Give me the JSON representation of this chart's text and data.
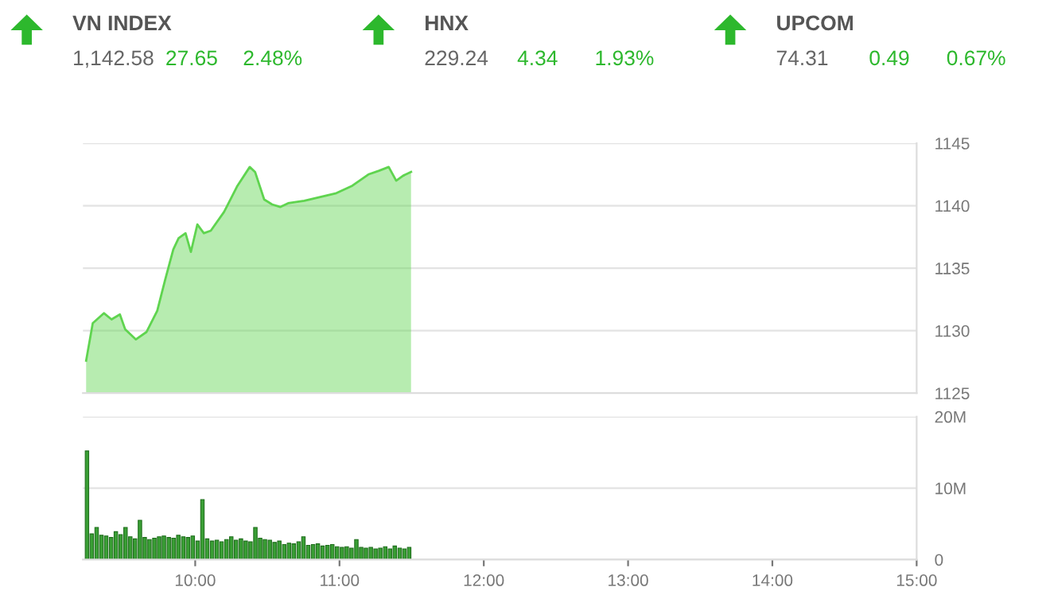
{
  "chart_data": [
    {
      "type": "other",
      "title": "VN INDEX",
      "annotations": [
        "1,142.58",
        "27.65",
        "2.48%"
      ],
      "color": "#2db82d"
    },
    {
      "type": "other",
      "title": "HNX",
      "annotations": [
        "229.24",
        "4.34",
        "1.93%"
      ],
      "color": "#2db82d"
    },
    {
      "type": "other",
      "title": "UPCOM",
      "annotations": [
        "74.31",
        "0.49",
        "0.67%"
      ],
      "color": "#2db82d"
    },
    {
      "type": "area",
      "color": "#5fd44f",
      "grid": "y",
      "tick_labels": "y",
      "xlim": [
        9.222,
        15.0
      ],
      "ylim": [
        1125,
        1145
      ],
      "yticks": [
        1125,
        1130,
        1135,
        1140,
        1145
      ],
      "x": [
        9.244,
        9.29,
        9.367,
        9.42,
        9.478,
        9.515,
        9.589,
        9.663,
        9.737,
        9.79,
        9.848,
        9.885,
        9.933,
        9.97,
        10.015,
        10.06,
        10.108,
        10.2,
        10.293,
        10.378,
        10.415,
        10.478,
        10.533,
        10.589,
        10.644,
        10.756,
        10.867,
        10.978,
        11.089,
        11.2,
        11.274,
        11.341,
        11.393,
        11.441,
        11.496
      ],
      "values": [
        1127.6,
        1130.6,
        1131.4,
        1130.9,
        1131.3,
        1130.1,
        1129.3,
        1129.9,
        1131.6,
        1134.0,
        1136.5,
        1137.4,
        1137.8,
        1136.3,
        1138.5,
        1137.8,
        1138.0,
        1139.5,
        1141.6,
        1143.1,
        1142.7,
        1140.5,
        1140.1,
        1139.9,
        1140.2,
        1140.4,
        1140.7,
        1141.0,
        1141.6,
        1142.5,
        1142.8,
        1143.1,
        1142.0,
        1142.4,
        1142.7
      ]
    },
    {
      "type": "bar",
      "color": "#3a9f35",
      "grid": "y",
      "xlim": [
        9.222,
        15.0
      ],
      "xticks": [
        {
          "value": 10,
          "label": "10:00"
        },
        {
          "value": 11,
          "label": "11:00"
        },
        {
          "value": 12,
          "label": "12:00"
        },
        {
          "value": 13,
          "label": "13:00"
        },
        {
          "value": 14,
          "label": "14:00"
        },
        {
          "value": 15,
          "label": "15:00"
        }
      ],
      "ylim": [
        0,
        20
      ],
      "yticks": [
        0,
        {
          "value": 10,
          "label": "10M"
        },
        {
          "value": 20,
          "label": "20M"
        }
      ],
      "x": [
        9.25,
        9.283,
        9.317,
        9.35,
        9.383,
        9.417,
        9.45,
        9.483,
        9.517,
        9.55,
        9.583,
        9.617,
        9.65,
        9.683,
        9.717,
        9.75,
        9.783,
        9.817,
        9.85,
        9.883,
        9.917,
        9.95,
        9.983,
        10.017,
        10.05,
        10.083,
        10.117,
        10.15,
        10.183,
        10.217,
        10.25,
        10.283,
        10.317,
        10.35,
        10.383,
        10.417,
        10.45,
        10.483,
        10.517,
        10.55,
        10.583,
        10.617,
        10.65,
        10.683,
        10.717,
        10.75,
        10.783,
        10.817,
        10.85,
        10.883,
        10.917,
        10.95,
        10.983,
        11.017,
        11.05,
        11.083,
        11.117,
        11.15,
        11.183,
        11.217,
        11.25,
        11.283,
        11.317,
        11.35,
        11.383,
        11.417,
        11.45,
        11.483
      ],
      "values": [
        15.2,
        3.6,
        4.5,
        3.4,
        3.3,
        3.1,
        3.9,
        3.5,
        4.5,
        3.2,
        2.9,
        5.5,
        3.1,
        2.8,
        3.0,
        3.2,
        3.3,
        3.1,
        3.0,
        3.4,
        3.2,
        3.1,
        3.3,
        2.6,
        8.4,
        2.9,
        2.6,
        2.7,
        2.5,
        2.8,
        3.2,
        2.7,
        2.9,
        2.6,
        2.5,
        4.5,
        3.0,
        2.8,
        2.7,
        2.4,
        2.6,
        2.1,
        2.3,
        2.2,
        2.5,
        3.2,
        2.0,
        2.1,
        2.2,
        1.9,
        2.0,
        2.1,
        1.8,
        1.7,
        1.8,
        1.6,
        2.8,
        1.7,
        1.6,
        1.7,
        1.5,
        1.6,
        1.8,
        1.5,
        1.9,
        1.6,
        1.5,
        1.7
      ]
    }
  ]
}
